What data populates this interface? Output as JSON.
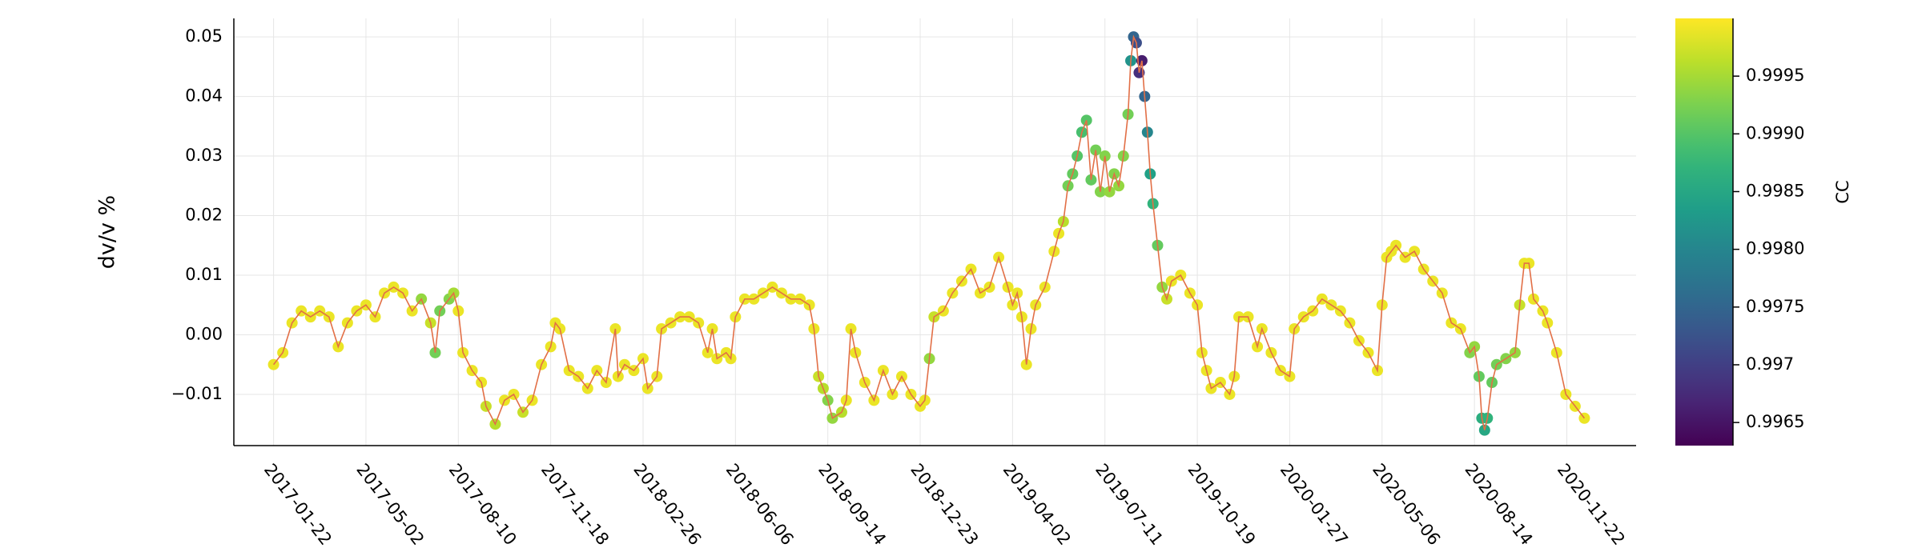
{
  "chart_data": {
    "type": "scatter",
    "ylabel": "dv/v %",
    "x": [
      "2017-01-22",
      "2017-02-01",
      "2017-02-11",
      "2017-02-21",
      "2017-03-03",
      "2017-03-13",
      "2017-03-23",
      "2017-04-02",
      "2017-04-12",
      "2017-04-22",
      "2017-05-02",
      "2017-05-12",
      "2017-05-22",
      "2017-06-01",
      "2017-06-11",
      "2017-06-21",
      "2017-07-01",
      "2017-07-11",
      "2017-07-16",
      "2017-07-21",
      "2017-07-31",
      "2017-08-05",
      "2017-08-10",
      "2017-08-15",
      "2017-08-25",
      "2017-09-04",
      "2017-09-09",
      "2017-09-19",
      "2017-09-29",
      "2017-10-09",
      "2017-10-19",
      "2017-10-29",
      "2017-11-08",
      "2017-11-18",
      "2017-11-23",
      "2017-11-28",
      "2017-12-08",
      "2017-12-18",
      "2017-12-28",
      "2018-01-07",
      "2018-01-17",
      "2018-01-27",
      "2018-01-30",
      "2018-02-06",
      "2018-02-16",
      "2018-02-26",
      "2018-03-03",
      "2018-03-13",
      "2018-03-18",
      "2018-03-28",
      "2018-04-07",
      "2018-04-17",
      "2018-04-27",
      "2018-05-07",
      "2018-05-12",
      "2018-05-17",
      "2018-05-27",
      "2018-06-01",
      "2018-06-06",
      "2018-06-16",
      "2018-06-26",
      "2018-07-06",
      "2018-07-16",
      "2018-07-26",
      "2018-08-05",
      "2018-08-15",
      "2018-08-25",
      "2018-08-30",
      "2018-09-04",
      "2018-09-09",
      "2018-09-14",
      "2018-09-19",
      "2018-09-29",
      "2018-10-04",
      "2018-10-09",
      "2018-10-14",
      "2018-10-24",
      "2018-11-03",
      "2018-11-13",
      "2018-11-23",
      "2018-12-03",
      "2018-12-13",
      "2018-12-23",
      "2018-12-28",
      "2019-01-02",
      "2019-01-07",
      "2019-01-17",
      "2019-01-27",
      "2019-02-06",
      "2019-02-16",
      "2019-02-26",
      "2019-03-08",
      "2019-03-18",
      "2019-03-28",
      "2019-04-02",
      "2019-04-07",
      "2019-04-12",
      "2019-04-17",
      "2019-04-22",
      "2019-04-27",
      "2019-05-07",
      "2019-05-17",
      "2019-05-22",
      "2019-05-27",
      "2019-06-01",
      "2019-06-06",
      "2019-06-11",
      "2019-06-16",
      "2019-06-21",
      "2019-06-26",
      "2019-07-01",
      "2019-07-06",
      "2019-07-11",
      "2019-07-16",
      "2019-07-21",
      "2019-07-26",
      "2019-07-31",
      "2019-08-05",
      "2019-08-08",
      "2019-08-11",
      "2019-08-14",
      "2019-08-17",
      "2019-08-20",
      "2019-08-23",
      "2019-08-26",
      "2019-08-29",
      "2019-09-01",
      "2019-09-06",
      "2019-09-11",
      "2019-09-16",
      "2019-09-21",
      "2019-10-01",
      "2019-10-11",
      "2019-10-19",
      "2019-10-24",
      "2019-10-29",
      "2019-11-03",
      "2019-11-13",
      "2019-11-23",
      "2019-11-28",
      "2019-12-03",
      "2019-12-13",
      "2019-12-23",
      "2019-12-28",
      "2020-01-07",
      "2020-01-17",
      "2020-01-27",
      "2020-02-01",
      "2020-02-11",
      "2020-02-21",
      "2020-03-02",
      "2020-03-12",
      "2020-03-22",
      "2020-04-01",
      "2020-04-11",
      "2020-04-21",
      "2020-05-01",
      "2020-05-06",
      "2020-05-11",
      "2020-05-16",
      "2020-05-21",
      "2020-05-31",
      "2020-06-10",
      "2020-06-20",
      "2020-06-30",
      "2020-07-10",
      "2020-07-20",
      "2020-07-30",
      "2020-08-09",
      "2020-08-14",
      "2020-08-19",
      "2020-08-22",
      "2020-08-25",
      "2020-08-28",
      "2020-09-02",
      "2020-09-07",
      "2020-09-17",
      "2020-09-27",
      "2020-10-02",
      "2020-10-07",
      "2020-10-12",
      "2020-10-17",
      "2020-10-27",
      "2020-11-01",
      "2020-11-11",
      "2020-11-21",
      "2020-12-01",
      "2020-12-11"
    ],
    "series": [
      {
        "color": "#e26f46",
        "values": [
          -0.005,
          -0.003,
          0.002,
          0.004,
          0.003,
          0.004,
          0.003,
          -0.002,
          0.002,
          0.004,
          0.005,
          0.003,
          0.007,
          0.008,
          0.007,
          0.004,
          0.006,
          0.002,
          -0.003,
          0.004,
          0.006,
          0.007,
          0.004,
          -0.003,
          -0.006,
          -0.008,
          -0.012,
          -0.015,
          -0.011,
          -0.01,
          -0.013,
          -0.011,
          -0.005,
          -0.002,
          0.002,
          0.001,
          -0.006,
          -0.007,
          -0.009,
          -0.006,
          -0.008,
          0.001,
          -0.007,
          -0.005,
          -0.006,
          -0.004,
          -0.009,
          -0.007,
          0.001,
          0.002,
          0.003,
          0.003,
          0.002,
          -0.003,
          0.001,
          -0.004,
          -0.003,
          -0.004,
          0.003,
          0.006,
          0.006,
          0.007,
          0.008,
          0.007,
          0.006,
          0.006,
          0.005,
          0.001,
          -0.007,
          -0.009,
          -0.011,
          -0.014,
          -0.013,
          -0.011,
          0.001,
          -0.003,
          -0.008,
          -0.011,
          -0.006,
          -0.01,
          -0.007,
          -0.01,
          -0.012,
          -0.011,
          -0.004,
          0.003,
          0.004,
          0.007,
          0.009,
          0.011,
          0.007,
          0.008,
          0.013,
          0.008,
          0.005,
          0.007,
          0.003,
          -0.005,
          0.001,
          0.005,
          0.008,
          0.014,
          0.017,
          0.019,
          0.025,
          0.027,
          0.03,
          0.034,
          0.036,
          0.026,
          0.031,
          0.024,
          0.03,
          0.024,
          0.027,
          0.025,
          0.03,
          0.037,
          0.046,
          0.05,
          0.049,
          0.044,
          0.046,
          0.04,
          0.034,
          0.027,
          0.022,
          0.015,
          0.008,
          0.006,
          0.009,
          0.01,
          0.007,
          0.005,
          -0.003,
          -0.006,
          -0.009,
          -0.008,
          -0.01,
          -0.007,
          0.003,
          0.003,
          -0.002,
          0.001,
          -0.003,
          -0.006,
          -0.007,
          0.001,
          0.003,
          0.004,
          0.006,
          0.005,
          0.004,
          0.002,
          -0.001,
          -0.003,
          -0.006,
          0.005,
          0.013,
          0.014,
          0.015,
          0.013,
          0.014,
          0.011,
          0.009,
          0.007,
          0.002,
          0.001,
          -0.003,
          -0.002,
          -0.007,
          -0.014,
          -0.016,
          -0.014,
          -0.008,
          -0.005,
          -0.004,
          -0.003,
          0.005,
          0.012,
          0.012,
          0.006,
          0.004,
          0.002,
          -0.003,
          -0.01,
          -0.012,
          -0.014
        ]
      }
    ],
    "color_values": [
      0.9999,
      0.9999,
      0.9999,
      0.9999,
      0.9999,
      0.9999,
      0.9999,
      0.9999,
      0.9999,
      0.9999,
      0.9999,
      0.9999,
      0.9999,
      0.9999,
      0.9999,
      0.9999,
      0.9994,
      0.9997,
      0.9992,
      0.9992,
      0.9993,
      0.9995,
      0.9999,
      0.9999,
      0.9999,
      0.9999,
      0.9997,
      0.9996,
      0.9999,
      0.9999,
      0.9997,
      0.9999,
      0.9999,
      0.9999,
      0.9999,
      0.9999,
      0.9999,
      0.9999,
      0.9999,
      0.9999,
      0.9999,
      0.9999,
      0.9999,
      0.9999,
      0.9999,
      0.9999,
      0.9999,
      0.9999,
      0.9999,
      0.9999,
      0.9999,
      0.9999,
      0.9999,
      0.9999,
      0.9999,
      0.9999,
      0.9999,
      0.9999,
      0.9999,
      0.9999,
      0.9999,
      0.9999,
      0.9999,
      0.9999,
      0.9999,
      0.9999,
      0.9999,
      0.9999,
      0.9997,
      0.9996,
      0.9993,
      0.9994,
      0.9996,
      0.9999,
      0.9999,
      0.9999,
      0.9999,
      0.9999,
      0.9999,
      0.9999,
      0.9999,
      0.9999,
      0.9999,
      0.9999,
      0.9994,
      0.9997,
      0.9999,
      0.9999,
      0.9999,
      0.9999,
      0.9999,
      0.9999,
      0.9999,
      0.9999,
      0.9999,
      0.9999,
      0.9999,
      0.9999,
      0.9999,
      0.9999,
      0.9999,
      0.9999,
      0.9999,
      0.9996,
      0.9992,
      0.9991,
      0.999,
      0.9989,
      0.999,
      0.9991,
      0.9992,
      0.9993,
      0.9993,
      0.9994,
      0.9993,
      0.9994,
      0.9993,
      0.9992,
      0.9982,
      0.9975,
      0.9972,
      0.9968,
      0.9966,
      0.9975,
      0.998,
      0.9984,
      0.9987,
      0.9991,
      0.9994,
      0.9997,
      0.9999,
      0.9999,
      0.9999,
      0.9999,
      0.9999,
      0.9999,
      0.9999,
      0.9999,
      0.9999,
      0.9999,
      0.9999,
      0.9999,
      0.9999,
      0.9999,
      0.9999,
      0.9999,
      0.9999,
      0.9999,
      0.9999,
      0.9999,
      0.9999,
      0.9999,
      0.9999,
      0.9999,
      0.9999,
      0.9999,
      0.9999,
      0.9999,
      0.9999,
      0.9999,
      0.9999,
      0.9999,
      0.9999,
      0.9999,
      0.9999,
      0.9999,
      0.9999,
      0.9999,
      0.9993,
      0.9994,
      0.9991,
      0.9986,
      0.9985,
      0.9987,
      0.9991,
      0.9992,
      0.9993,
      0.9994,
      0.9997,
      0.9999,
      0.9999,
      0.9999,
      0.9999,
      0.9999,
      0.9999,
      0.9999,
      0.9999,
      0.9999
    ],
    "colorbar": {
      "label": "CC",
      "colormap": [
        "#440154",
        "#482878",
        "#3e4989",
        "#31688e",
        "#26828e",
        "#1f9e89",
        "#35b779",
        "#6ece58",
        "#b5de2b",
        "#fde725"
      ],
      "lim": [
        0.9963,
        1.0
      ],
      "ticks": [
        0.9965,
        0.997,
        0.9975,
        {
          "value": 0.998,
          "label": "0.9980"
        },
        0.9985,
        {
          "value": 0.999,
          "label": "0.9990"
        },
        0.9995
      ]
    },
    "xlim": [
      "2016-12-10",
      "2021-02-05"
    ],
    "xticks": [
      "2017-01-22",
      "2017-05-02",
      "2017-08-10",
      "2017-11-18",
      "2018-02-26",
      "2018-06-06",
      "2018-09-14",
      "2018-12-23",
      "2019-04-02",
      "2019-07-11",
      "2019-10-19",
      "2020-01-27",
      "2020-05-06",
      "2020-08-14",
      "2020-11-22"
    ],
    "ylim": [
      -0.0186,
      0.0531
    ],
    "yticks": [
      {
        "value": -0.01,
        "label": "−0.01"
      },
      {
        "value": 0,
        "label": "0.00"
      },
      0.01,
      0.02,
      0.03,
      0.04,
      0.05
    ],
    "grid": true
  }
}
